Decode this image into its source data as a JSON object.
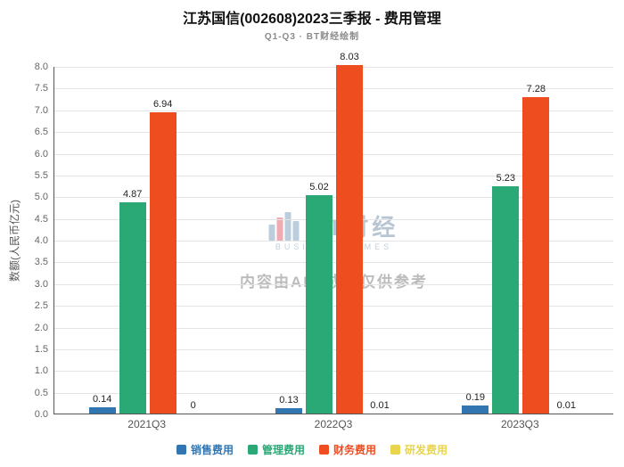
{
  "header": {
    "title": "江苏国信(002608)2023三季报 - 费用管理",
    "subtitle": "Q1-Q3 · BT财经绘制"
  },
  "watermark": {
    "brand": "BT财经",
    "brand_sub": "BUSINESS TIMES",
    "disclaimer": "内容由AI生成，仅供参考"
  },
  "chart_data": {
    "type": "bar",
    "title": "江苏国信(002608)2023三季报 - 费用管理",
    "subtitle": "Q1-Q3 · BT财经绘制",
    "categories": [
      "2021Q3",
      "2022Q3",
      "2023Q3"
    ],
    "series": [
      {
        "name": "销售费用",
        "color": "#3276b1",
        "values": [
          0.14,
          0.13,
          0.19
        ]
      },
      {
        "name": "管理费用",
        "color": "#2aa876",
        "values": [
          4.87,
          5.02,
          5.23
        ]
      },
      {
        "name": "财务费用",
        "color": "#ee4d20",
        "values": [
          6.94,
          8.03,
          7.28
        ]
      },
      {
        "name": "研发费用",
        "color": "#e8d44d",
        "values": [
          0,
          0.01,
          0.01
        ]
      }
    ],
    "xlabel": "",
    "ylabel": "数额(人民币亿元)",
    "ylim": [
      0,
      8.0
    ],
    "ytick_step": 0.5,
    "grid": true,
    "legend_position": "bottom"
  }
}
